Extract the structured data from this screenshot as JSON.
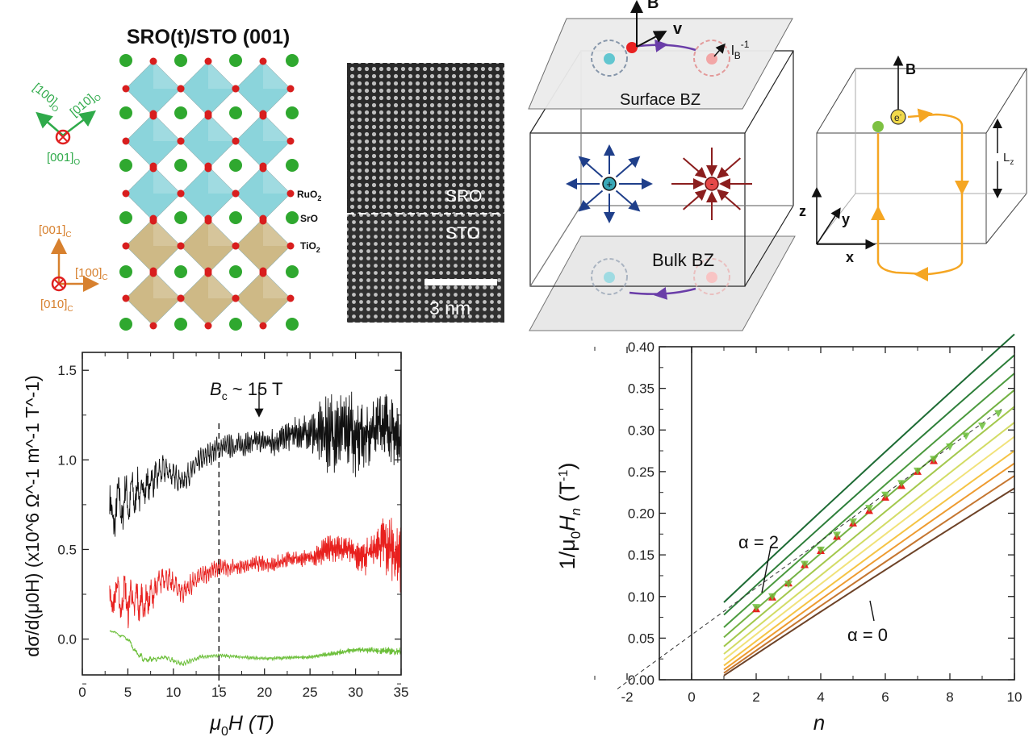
{
  "panel_structure": {
    "title": "SRO(t)/STO (001)",
    "axes_orthorhombic": {
      "a": "[100]",
      "b": "[010]",
      "c": "[001]",
      "sub": "O",
      "color": "#2faa4a"
    },
    "axes_cubic": {
      "a": "[001]",
      "b": "[100]",
      "c": "[010]",
      "sub": "C",
      "color": "#d7802e"
    },
    "layer_labels": {
      "ruo2": "RuO",
      "sro": "SrO",
      "tio2": "TiO",
      "sub2": "2"
    },
    "colors": {
      "sro_octahedra": "#7fd0d8",
      "sto_octahedra": "#c9b27a",
      "oxygen": "#d81e1e",
      "strontium": "#2fa82f"
    }
  },
  "panel_tem": {
    "upper_label": "SRO",
    "lower_label": "STO",
    "scale_bar": "3 nm"
  },
  "panel_weyl": {
    "field_label": "B",
    "velocity_label": "v",
    "magnetic_length_label": "l",
    "magnetic_length_sub": "B",
    "magnetic_length_sup": "-1",
    "surface_label": "Surface BZ",
    "bulk_label": "Bulk BZ",
    "positive_node": "+",
    "negative_node": "-",
    "colors": {
      "positive": "#1f3f8a",
      "negative": "#8b1e1e",
      "arc": "#6a3da8"
    }
  },
  "panel_orbit": {
    "field_label": "B",
    "electron_label": "e",
    "electron_sup": "-",
    "thickness_label": "L",
    "thickness_sub": "z",
    "axis_x": "x",
    "axis_y": "y",
    "axis_z": "z",
    "colors": {
      "orbit": "#f5a623"
    }
  },
  "chart_data": [
    {
      "type": "line",
      "xlabel_main": "μ",
      "xlabel_sub": "0",
      "xlabel_rest": "H (T)",
      "ylabel": "dσ/d(μ0H) (x10^6 Ω^-1 m^-1 T^-1)",
      "xlim": [
        0,
        35
      ],
      "ylim": [
        -0.2,
        1.6
      ],
      "xticks": [
        "0",
        "5",
        "10",
        "15",
        "20",
        "25",
        "30",
        "35"
      ],
      "yticks": [
        "0.0",
        "0.5",
        "1.0",
        "1.5"
      ],
      "annotation": {
        "text_main": "B",
        "text_sub": "c",
        "text_rest": " ~ 15 T",
        "x": 15
      },
      "grid": false,
      "series": [
        {
          "color": "#111111",
          "x": [
            3,
            5,
            7,
            9,
            11,
            13,
            15,
            17,
            19,
            21,
            23,
            25,
            27,
            29,
            31,
            33,
            35
          ],
          "y": [
            0.7,
            0.78,
            0.85,
            0.95,
            0.88,
            1.0,
            1.07,
            1.08,
            1.1,
            1.1,
            1.14,
            1.15,
            1.15,
            1.15,
            1.15,
            1.2,
            1.12
          ],
          "oscillation_amplitude": [
            0.15,
            0.15,
            0.1,
            0.07,
            0.06,
            0.06,
            0.06,
            0.06,
            0.06,
            0.07,
            0.08,
            0.1,
            0.2,
            0.22,
            0.2,
            0.18,
            0.15
          ]
        },
        {
          "color": "#e8201e",
          "x": [
            3,
            5,
            7,
            9,
            11,
            13,
            15,
            17,
            19,
            21,
            23,
            25,
            27,
            29,
            31,
            33,
            35
          ],
          "y": [
            0.25,
            0.22,
            0.2,
            0.35,
            0.26,
            0.35,
            0.4,
            0.4,
            0.42,
            0.42,
            0.45,
            0.45,
            0.5,
            0.5,
            0.45,
            0.55,
            0.45
          ],
          "oscillation_amplitude": [
            0.08,
            0.14,
            0.1,
            0.06,
            0.06,
            0.05,
            0.05,
            0.04,
            0.04,
            0.04,
            0.04,
            0.05,
            0.08,
            0.07,
            0.08,
            0.15,
            0.18
          ]
        },
        {
          "color": "#6cbf3a",
          "x": [
            3,
            5,
            6,
            7,
            9,
            11,
            13,
            15,
            20,
            25,
            30,
            35
          ],
          "y": [
            0.05,
            0.0,
            -0.08,
            -0.12,
            -0.1,
            -0.14,
            -0.1,
            -0.09,
            -0.11,
            -0.1,
            -0.06,
            -0.07
          ],
          "oscillation_amplitude": [
            0.005,
            0.01,
            0.02,
            0.02,
            0.01,
            0.015,
            0.01,
            0.01,
            0.01,
            0.01,
            0.015,
            0.02
          ]
        }
      ]
    },
    {
      "type": "line",
      "xlabel": "n",
      "ylabel_main": "1/μ",
      "ylabel_sub": "0",
      "ylabel_h": "H",
      "ylabel_hsub": "n",
      "ylabel_unit": " (T",
      "ylabel_unit_sup": "-1",
      "ylabel_close": ")",
      "xlim": [
        -3,
        10
      ],
      "ylim": [
        0,
        0.4
      ],
      "xticks": [
        "-2",
        "0",
        "2",
        "4",
        "6",
        "8",
        "10"
      ],
      "yticks": [
        "0.00",
        "0.05",
        "0.10",
        "0.15",
        "0.20",
        "0.25",
        "0.30",
        "0.35",
        "0.40"
      ],
      "grid": false,
      "annotations": [
        {
          "text": "α = 2"
        },
        {
          "text": "α = 0"
        }
      ],
      "model_lines": [
        {
          "alpha": 2.0,
          "color": "#1d6b34",
          "n": [
            1,
            10
          ],
          "y": [
            0.093,
            0.415
          ]
        },
        {
          "alpha": 1.8,
          "color": "#2e7f3a",
          "n": [
            1,
            10
          ],
          "y": [
            0.078,
            0.39
          ]
        },
        {
          "alpha": 1.6,
          "color": "#4b9a3e",
          "n": [
            1,
            10
          ],
          "y": [
            0.063,
            0.368
          ]
        },
        {
          "alpha": 1.4,
          "color": "#74b244",
          "n": [
            1,
            10
          ],
          "y": [
            0.051,
            0.348
          ]
        },
        {
          "alpha": 1.2,
          "color": "#a3c84d",
          "n": [
            1,
            10
          ],
          "y": [
            0.04,
            0.328
          ]
        },
        {
          "alpha": 1.0,
          "color": "#d3dc66",
          "n": [
            1,
            10
          ],
          "y": [
            0.031,
            0.309
          ]
        },
        {
          "alpha": 0.8,
          "color": "#f1e27a",
          "n": [
            1,
            10
          ],
          "y": [
            0.024,
            0.292
          ]
        },
        {
          "alpha": 0.6,
          "color": "#f5c445",
          "n": [
            1,
            10
          ],
          "y": [
            0.017,
            0.275
          ]
        },
        {
          "alpha": 0.4,
          "color": "#ee9b30",
          "n": [
            1,
            10
          ],
          "y": [
            0.012,
            0.26
          ]
        },
        {
          "alpha": 0.2,
          "color": "#c57630",
          "n": [
            1,
            10
          ],
          "y": [
            0.008,
            0.245
          ]
        },
        {
          "alpha": 0.0,
          "color": "#6e4328",
          "n": [
            1,
            10
          ],
          "y": [
            0.005,
            0.23
          ]
        }
      ],
      "fit_line": {
        "style": "dashed",
        "n": [
          -2.3,
          9.6
        ],
        "y": [
          -0.011,
          0.325
        ]
      },
      "series": [
        {
          "marker": "triangle-up",
          "color": "#e8201e",
          "n": [
            2,
            2.5,
            3,
            3.5,
            4,
            4.5,
            5,
            5.5,
            6,
            6.5,
            7,
            7.5
          ],
          "y": [
            0.085,
            0.099,
            0.116,
            0.138,
            0.155,
            0.172,
            0.188,
            0.203,
            0.219,
            0.233,
            0.25,
            0.263
          ]
        },
        {
          "marker": "triangle-down",
          "color": "#6cbf3a",
          "n": [
            2,
            2.5,
            3,
            3.5,
            4,
            4.5,
            5,
            5.5,
            6,
            6.5,
            7,
            7.5,
            8,
            8.5,
            9,
            9.5
          ],
          "y": [
            0.087,
            0.1,
            0.115,
            0.139,
            0.156,
            0.174,
            0.19,
            0.206,
            0.222,
            0.236,
            0.251,
            0.265,
            0.28,
            0.293,
            0.305,
            0.32
          ]
        }
      ]
    }
  ]
}
